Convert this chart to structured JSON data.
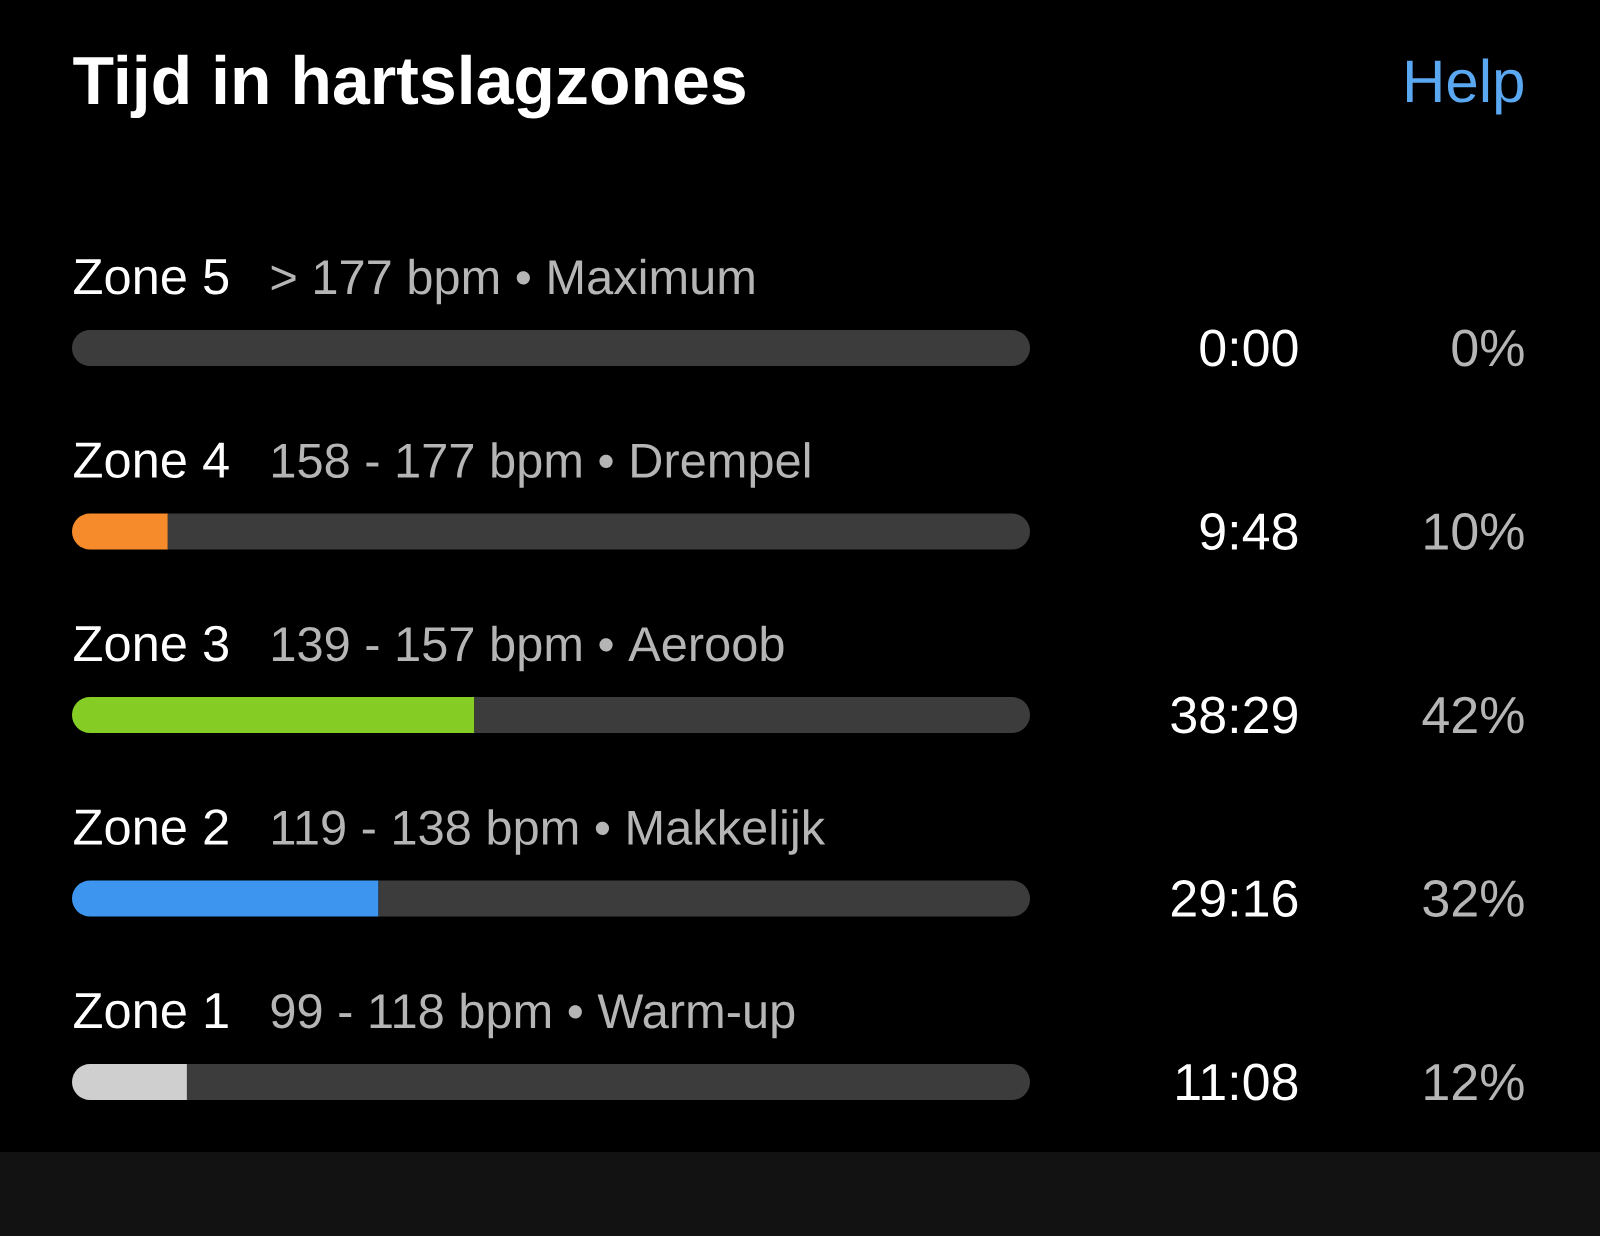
{
  "chart_data": {
    "type": "bar",
    "orientation": "horizontal",
    "stacked": true,
    "title": "Tijd in hartslagzones",
    "categories": [
      "Zone 5",
      "Zone 4",
      "Zone 3",
      "Zone 2",
      "Zone 1"
    ],
    "series": [
      {
        "values": [
          0,
          10,
          42,
          32,
          12
        ],
        "colors": [
          null,
          "#f68b2c",
          "#85cc25",
          "#3e95ef",
          "#cfcfcf"
        ],
        "value_labels": [
          "0%",
          "10%",
          "42%",
          "32%",
          "12%"
        ]
      },
      {
        "values": [
          100,
          90,
          58,
          68,
          88
        ],
        "color": "#3c3c3c"
      }
    ],
    "xlim": [
      0,
      100
    ],
    "tick_labels": "y",
    "annotations": [
      "Help",
      "> 177 bpm • Maximum",
      "158 - 177 bpm • Drempel",
      "139 - 157 bpm • Aeroob",
      "119 - 138 bpm • Makkelijk",
      "99 - 118 bpm • Warm-up",
      "0:00",
      "9:48",
      "38:29",
      "29:16",
      "11:08"
    ]
  }
}
